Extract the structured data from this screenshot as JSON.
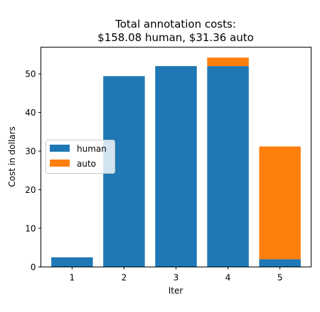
{
  "chart_data": {
    "type": "bar",
    "stacked": true,
    "title_line1": "Total annotation costs:",
    "title_line2": "$158.08 human, $31.36 auto",
    "xlabel": "Iter",
    "ylabel": "Cost in dollars",
    "categories": [
      "1",
      "2",
      "3",
      "4",
      "5"
    ],
    "series": [
      {
        "name": "human",
        "color": "#1f77b4",
        "values": [
          2.5,
          49.4,
          52.0,
          52.0,
          2.0
        ]
      },
      {
        "name": "auto",
        "color": "#ff7f0e",
        "values": [
          0.0,
          0.0,
          0.0,
          2.2,
          29.2
        ]
      }
    ],
    "ylim": [
      0,
      56.9
    ],
    "yticks": [
      0,
      10,
      20,
      30,
      40,
      50
    ],
    "legend_position": "center-left",
    "grid": false
  }
}
